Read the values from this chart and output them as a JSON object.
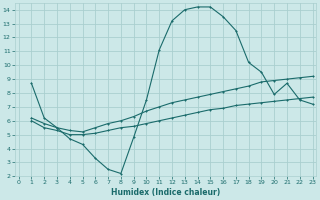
{
  "xlabel": "Humidex (Indice chaleur)",
  "bg_color": "#cce8e8",
  "grid_color": "#aacfcf",
  "line_color": "#1a6b6b",
  "line1_x": [
    1,
    2,
    3,
    4,
    5,
    6,
    7,
    8,
    9,
    10,
    11,
    12,
    13,
    14,
    15,
    16,
    17,
    18,
    19,
    20,
    21,
    22,
    23
  ],
  "line1_y": [
    8.7,
    6.2,
    5.5,
    4.7,
    4.3,
    3.3,
    2.5,
    2.2,
    4.8,
    7.5,
    11.1,
    13.2,
    14.0,
    14.2,
    14.2,
    13.5,
    12.5,
    10.2,
    9.5,
    7.9,
    8.7,
    7.5,
    7.2
  ],
  "line2_x": [
    1,
    2,
    3,
    4,
    5,
    6,
    7,
    8,
    9,
    10,
    11,
    12,
    13,
    14,
    15,
    16,
    17,
    18,
    19,
    20,
    21,
    22,
    23
  ],
  "line2_y": [
    6.2,
    5.8,
    5.5,
    5.3,
    5.2,
    5.5,
    5.8,
    6.0,
    6.3,
    6.7,
    7.0,
    7.3,
    7.5,
    7.7,
    7.9,
    8.1,
    8.3,
    8.5,
    8.8,
    8.9,
    9.0,
    9.1,
    9.2
  ],
  "line3_x": [
    1,
    2,
    3,
    4,
    5,
    6,
    7,
    8,
    9,
    10,
    11,
    12,
    13,
    14,
    15,
    16,
    17,
    18,
    19,
    20,
    21,
    22,
    23
  ],
  "line3_y": [
    6.0,
    5.5,
    5.3,
    5.0,
    5.0,
    5.1,
    5.3,
    5.5,
    5.6,
    5.8,
    6.0,
    6.2,
    6.4,
    6.6,
    6.8,
    6.9,
    7.1,
    7.2,
    7.3,
    7.4,
    7.5,
    7.6,
    7.7
  ],
  "xlim": [
    -0.3,
    23.3
  ],
  "ylim": [
    2,
    14.5
  ],
  "yticks": [
    2,
    3,
    4,
    5,
    6,
    7,
    8,
    9,
    10,
    11,
    12,
    13,
    14
  ],
  "xticks": [
    0,
    1,
    2,
    3,
    4,
    5,
    6,
    7,
    8,
    9,
    10,
    11,
    12,
    13,
    14,
    15,
    16,
    17,
    18,
    19,
    20,
    21,
    22,
    23
  ]
}
